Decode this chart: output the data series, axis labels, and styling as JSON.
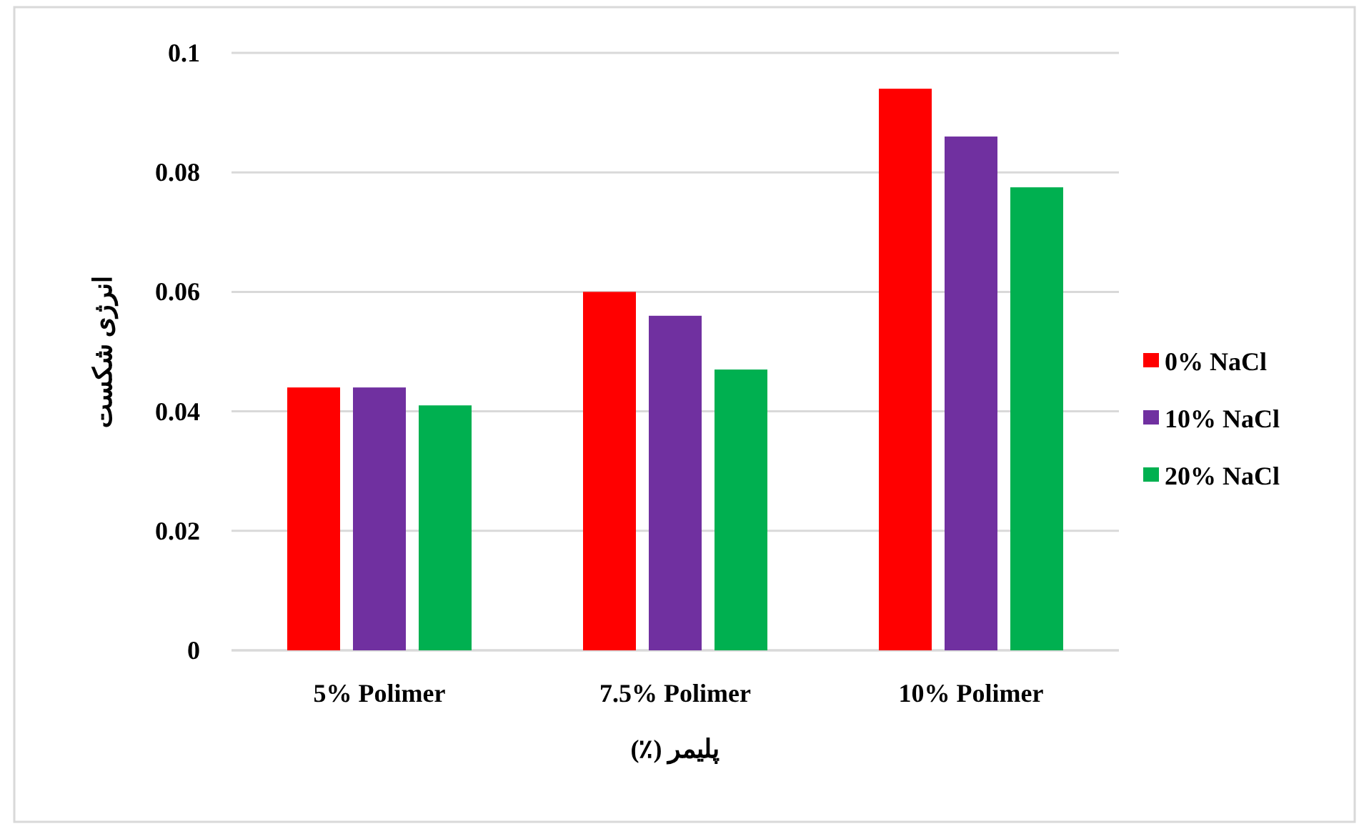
{
  "chart_data": {
    "type": "bar",
    "xlabel": "پلیمر (٪)",
    "ylabel": "انرژی شکست",
    "categories": [
      "5% Polimer",
      "7.5% Polimer",
      "10% Polimer"
    ],
    "series": [
      {
        "name": "0% NaCl",
        "color": "#ff0000",
        "values": [
          0.044,
          0.06,
          0.094
        ]
      },
      {
        "name": "10% NaCl",
        "color": "#7030a0",
        "values": [
          0.044,
          0.056,
          0.086
        ]
      },
      {
        "name": "20% NaCl",
        "color": "#00b050",
        "values": [
          0.041,
          0.047,
          0.0775
        ]
      }
    ],
    "ylim": [
      0,
      0.1
    ],
    "yticks": [
      0,
      0.02,
      0.04,
      0.06,
      0.08,
      0.1
    ],
    "grid": "y",
    "legend": "right"
  }
}
